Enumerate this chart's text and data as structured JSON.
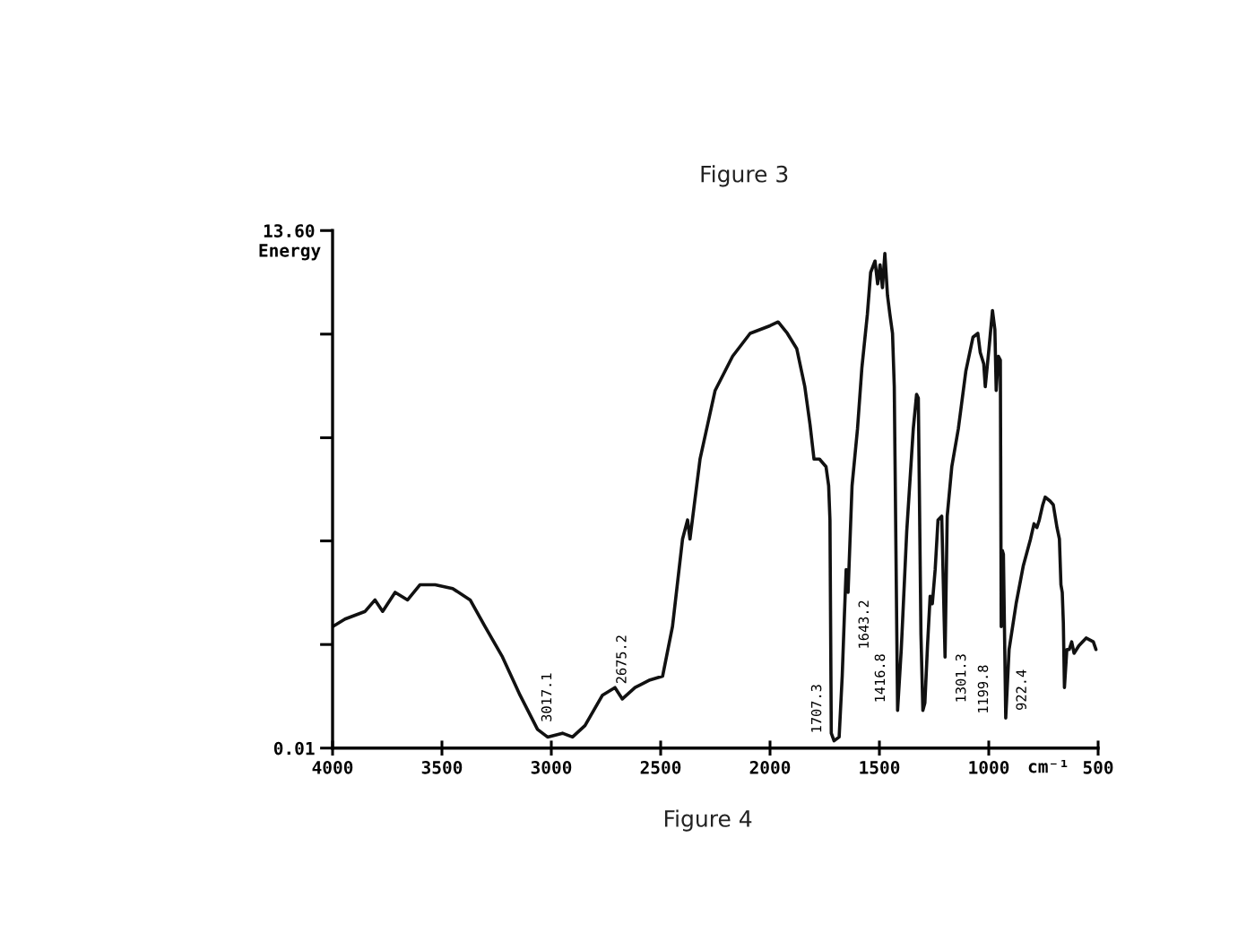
{
  "chart_data": {
    "type": "line",
    "x": [
      4000,
      3943,
      3851,
      3806,
      3771,
      3714,
      3657,
      3600,
      3531,
      3451,
      3371,
      3303,
      3223,
      3143,
      3063,
      3017.1,
      2949,
      2903,
      2846,
      2766,
      2709,
      2675.2,
      2617,
      2549,
      2491,
      2446,
      2400,
      2377,
      2366,
      2320,
      2251,
      2171,
      2091,
      2000,
      1963,
      1921,
      1878,
      1841,
      1817,
      1799,
      1774,
      1744,
      1732,
      1726,
      1720,
      1707.3,
      1684,
      1670,
      1660,
      1652,
      1643.2,
      1625,
      1600,
      1580,
      1555,
      1540,
      1520,
      1508,
      1497,
      1486,
      1475,
      1463,
      1452,
      1440,
      1432,
      1416.8,
      1400,
      1375,
      1345,
      1330,
      1322,
      1310,
      1301.3,
      1292,
      1280,
      1268,
      1258,
      1245,
      1232,
      1215,
      1199.8,
      1190,
      1169,
      1139,
      1105,
      1072,
      1050,
      1039,
      1023,
      1016,
      999,
      983,
      972,
      966,
      956,
      947,
      943,
      938,
      933,
      922.4,
      907,
      875,
      842,
      809,
      793,
      780,
      769,
      753,
      742,
      720,
      705,
      688,
      677,
      670,
      664,
      659,
      654,
      643,
      632,
      621,
      610,
      588,
      555,
      522,
      510
    ],
    "values": [
      3.2,
      3.4,
      3.6,
      3.9,
      3.6,
      4.1,
      3.9,
      4.3,
      4.3,
      4.2,
      3.9,
      3.2,
      2.4,
      1.4,
      0.5,
      0.3,
      0.4,
      0.3,
      0.6,
      1.4,
      1.6,
      1.3,
      1.6,
      1.8,
      1.9,
      3.2,
      5.5,
      6.0,
      5.5,
      7.6,
      9.4,
      10.3,
      10.9,
      11.1,
      11.2,
      10.9,
      10.5,
      9.5,
      8.5,
      7.6,
      7.6,
      7.4,
      6.9,
      6.0,
      0.4,
      0.2,
      0.3,
      1.9,
      3.5,
      4.7,
      4.1,
      6.9,
      8.4,
      10.0,
      11.4,
      12.5,
      12.8,
      12.2,
      12.7,
      12.1,
      13.0,
      11.9,
      11.4,
      10.9,
      9.5,
      1.0,
      2.6,
      5.7,
      8.4,
      9.3,
      9.2,
      3.0,
      1.0,
      1.2,
      2.7,
      4.0,
      3.8,
      4.7,
      6.0,
      6.1,
      2.4,
      6.1,
      7.4,
      8.4,
      9.9,
      10.8,
      10.9,
      10.4,
      10.1,
      9.5,
      10.5,
      11.5,
      11.0,
      9.4,
      10.3,
      10.2,
      3.2,
      5.2,
      5.1,
      0.8,
      2.6,
      3.8,
      4.8,
      5.5,
      5.9,
      5.8,
      6.0,
      6.4,
      6.6,
      6.5,
      6.4,
      5.8,
      5.5,
      4.3,
      4.1,
      3.3,
      1.6,
      2.6,
      2.6,
      2.8,
      2.5,
      2.7,
      2.9,
      2.8,
      2.6
    ],
    "color": "#111111",
    "xlabel": "cm⁻¹",
    "ylabel": "Energy",
    "xlim": [
      4000,
      500
    ],
    "xticks": [
      4000,
      3500,
      3000,
      2500,
      2000,
      1500,
      1000,
      500
    ],
    "ylim": [
      0.01,
      13.6
    ],
    "yticks": [
      0.01,
      {
        "value": 2.73,
        "label": null
      },
      {
        "value": 5.45,
        "label": null
      },
      {
        "value": 8.16,
        "label": null
      },
      {
        "value": 10.88,
        "label": null
      },
      {
        "value": 13.6,
        "label": "13.60"
      }
    ],
    "annotations": [
      "Figure 3",
      "Figure 4",
      {
        "text": "3017.1",
        "x": 3017.1,
        "y": 0.3
      },
      {
        "text": "2675.2",
        "x": 2675.2,
        "y": 1.3
      },
      {
        "text": "1707.3",
        "x": 1707.3,
        "y": 0.2
      },
      {
        "text": "1643.2",
        "x": 1643.2,
        "y": 4.1
      },
      {
        "text": "1416.8",
        "x": 1416.8,
        "y": 1.0
      },
      {
        "text": "1301.3",
        "x": 1301.3,
        "y": 1.0
      },
      {
        "text": "1199.8",
        "x": 1199.8,
        "y": 2.4
      },
      {
        "text": "922.4",
        "x": 922.4,
        "y": 0.8
      }
    ]
  }
}
